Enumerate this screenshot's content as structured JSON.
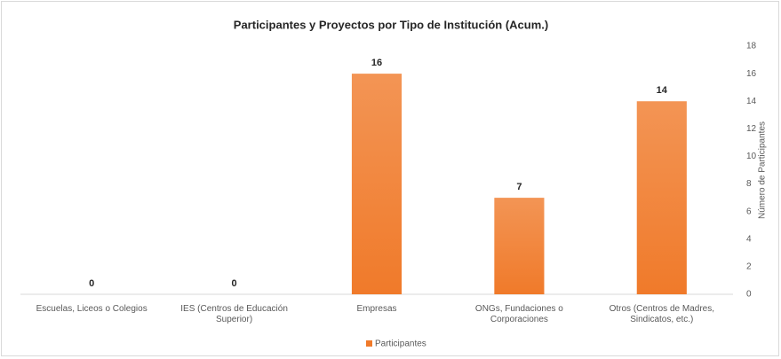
{
  "chart_data": {
    "type": "bar",
    "title": "Participantes y Proyectos por Tipo de Institución (Acum.)",
    "categories": [
      "Escuelas, Liceos o Colegios",
      "IES (Centros de Educación Superior)",
      "Empresas",
      "ONGs, Fundaciones o Corporaciones",
      "Otros (Centros de Madres, Sindicatos, etc.)"
    ],
    "series": [
      {
        "name": "Participantes",
        "color": "#f07a2a",
        "values": [
          0,
          0,
          16,
          7,
          14
        ]
      }
    ],
    "y_axis_label": "Número de Participantes",
    "ylim": [
      0,
      18
    ],
    "yticks": [
      0,
      2,
      4,
      6,
      8,
      10,
      12,
      14,
      16,
      18
    ],
    "y_axis_side": "right",
    "grid": false,
    "legend": "bottom"
  }
}
